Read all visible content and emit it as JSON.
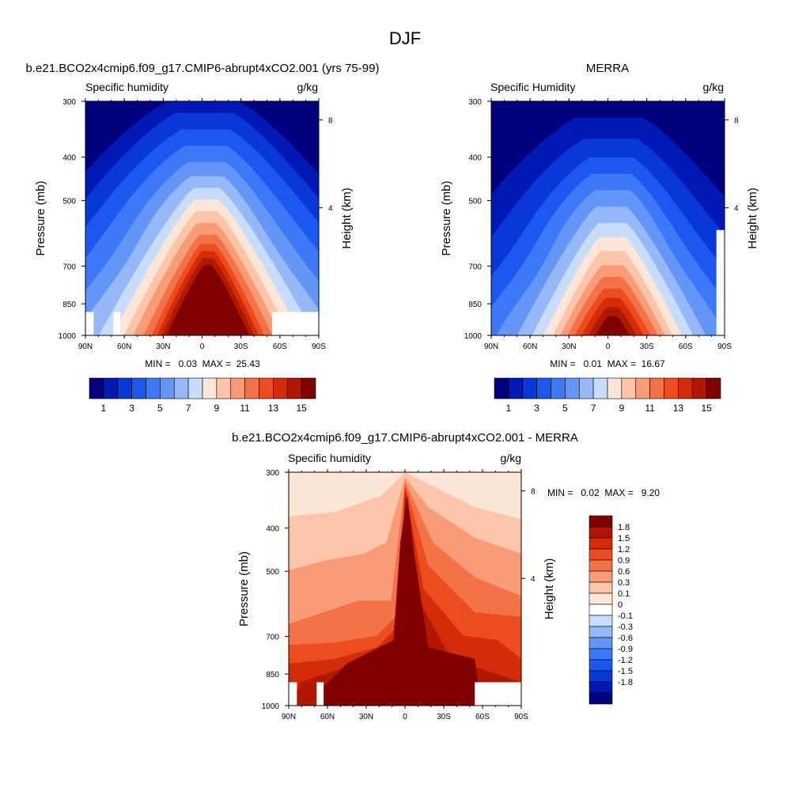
{
  "figure": {
    "title": "DJF"
  },
  "panels": [
    {
      "id": "model",
      "title": "b.e21.BCO2x4cmip6.f09_g17.CMIP6-abrupt4xCO2.001 (yrs 75-99)",
      "left_label": "Specific humidity",
      "right_label": "g/kg",
      "stats_text": "MIN =   0.03  MAX =  25.43",
      "colorbar_ticks": [
        "1",
        "3",
        "5",
        "7",
        "9",
        "11",
        "13",
        "15"
      ]
    },
    {
      "id": "obs",
      "title": "MERRA",
      "left_label": "Specific Humidity",
      "right_label": "g/kg",
      "stats_text": "MIN =   0.01  MAX =  16.67",
      "colorbar_ticks": [
        "1",
        "3",
        "5",
        "7",
        "9",
        "11",
        "13",
        "15"
      ]
    },
    {
      "id": "diff",
      "title": "b.e21.BCO2x4cmip6.f09_g17.CMIP6-abrupt4xCO2.001 - MERRA",
      "left_label": "Specific humidity",
      "right_label": "g/kg",
      "stats_text": "MIN =   0.02  MAX =   9.20",
      "colorbar_ticks": [
        "1.8",
        "1.5",
        "1.2",
        "0.9",
        "0.6",
        "0.3",
        "0.1",
        "0",
        "-0.1",
        "-0.3",
        "-0.6",
        "-0.9",
        "-1.2",
        "-1.5",
        "-1.8"
      ]
    }
  ],
  "chart_data": [
    {
      "type": "heatmap",
      "title": "b.e21.BCO2x4cmip6.f09_g17.CMIP6-abrupt4xCO2.001 (yrs 75-99)",
      "variable": "Specific humidity",
      "units": "g/kg",
      "ylabel": "Pressure (mb)",
      "y2label": "Height (km)",
      "x_ticks": [
        "90N",
        "60N",
        "30N",
        "0",
        "30S",
        "60S",
        "90S"
      ],
      "x_tick_values": [
        90,
        60,
        30,
        0,
        -30,
        -60,
        -90
      ],
      "y_ticks": [
        300,
        400,
        500,
        700,
        850,
        1000
      ],
      "y2_ticks": [
        8,
        4
      ],
      "ylim": [
        1000,
        300
      ],
      "xlim": [
        90,
        -90
      ],
      "y_scale": "log",
      "min": 0.03,
      "max": 25.43,
      "levels": [
        1,
        2,
        3,
        4,
        5,
        6,
        7,
        8,
        9,
        10,
        11,
        12,
        13,
        14,
        15
      ]
    },
    {
      "type": "heatmap",
      "title": "MERRA",
      "variable": "Specific Humidity",
      "units": "g/kg",
      "ylabel": "Pressure (mb)",
      "y2label": "Height (km)",
      "x_ticks": [
        "90N",
        "60N",
        "30N",
        "0",
        "30S",
        "60S",
        "90S"
      ],
      "x_tick_values": [
        90,
        60,
        30,
        0,
        -30,
        -60,
        -90
      ],
      "y_ticks": [
        300,
        400,
        500,
        700,
        850,
        1000
      ],
      "y2_ticks": [
        8,
        4
      ],
      "ylim": [
        1000,
        300
      ],
      "xlim": [
        90,
        -90
      ],
      "y_scale": "log",
      "min": 0.01,
      "max": 16.67,
      "levels": [
        1,
        2,
        3,
        4,
        5,
        6,
        7,
        8,
        9,
        10,
        11,
        12,
        13,
        14,
        15
      ]
    },
    {
      "type": "heatmap",
      "title": "b.e21.BCO2x4cmip6.f09_g17.CMIP6-abrupt4xCO2.001 - MERRA",
      "variable": "Specific humidity",
      "units": "g/kg",
      "ylabel": "Pressure (mb)",
      "y2label": "Height (km)",
      "x_ticks": [
        "90N",
        "60N",
        "30N",
        "0",
        "30S",
        "60S",
        "90S"
      ],
      "x_tick_values": [
        90,
        60,
        30,
        0,
        -30,
        -60,
        -90
      ],
      "y_ticks": [
        300,
        400,
        500,
        700,
        850,
        1000
      ],
      "y2_ticks": [
        8,
        4
      ],
      "ylim": [
        1000,
        300
      ],
      "xlim": [
        90,
        -90
      ],
      "y_scale": "log",
      "min": 0.02,
      "max": 9.2,
      "levels": [
        -1.8,
        -1.5,
        -1.2,
        -0.9,
        -0.6,
        -0.3,
        -0.1,
        0,
        0.1,
        0.3,
        0.6,
        0.9,
        1.2,
        1.5,
        1.8
      ]
    }
  ],
  "colors": {
    "palette_16": [
      "#00007f",
      "#0018b4",
      "#0838d8",
      "#1c58f0",
      "#3c78f8",
      "#6496f8",
      "#94b8f8",
      "#c8dcfc",
      "#fce6d8",
      "#fcc4a8",
      "#f89c78",
      "#f47248",
      "#ec4c20",
      "#d42c08",
      "#b01800",
      "#800000"
    ],
    "palette_diff_descending": [
      "#800000",
      "#b01800",
      "#d42c08",
      "#ec4c20",
      "#f47248",
      "#f89c78",
      "#fcc4a8",
      "#fce6d8",
      "#ffffff",
      "#c8dcfc",
      "#94b8f8",
      "#6496f8",
      "#3c78f8",
      "#1c58f0",
      "#0838d8",
      "#0018b4",
      "#00007f"
    ]
  }
}
